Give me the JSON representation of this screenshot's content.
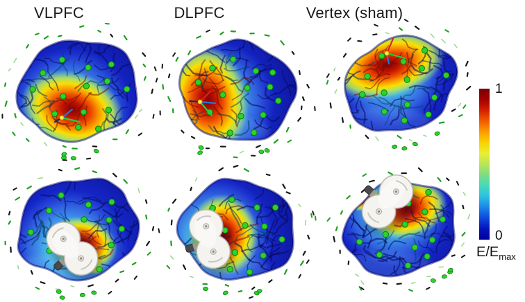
{
  "figure": {
    "background": "#ffffff",
    "columns": [
      {
        "label": "VLPFC"
      },
      {
        "label": "DLPFC"
      },
      {
        "label": "Vertex (sham)"
      }
    ],
    "colorbar": {
      "max_label": "1",
      "min_label": "0",
      "quantity": "E/E",
      "quantity_sub": "max",
      "gradient": [
        "#7a0003",
        "#a30000",
        "#d32000",
        "#f25c00",
        "#fb9b00",
        "#f8d300",
        "#e8ef30",
        "#b9e55a",
        "#7edc84",
        "#45d9bb",
        "#2cc0e2",
        "#1b86e8",
        "#1048dd",
        "#0413bb",
        "#00009b"
      ]
    },
    "palette": {
      "brain_light": "#2946e6",
      "brain_base": "#1526c8",
      "brain_dark": "#0a0f8a",
      "cyan_zone": "#50cdeb",
      "hotspot_core": "#840006",
      "hotspot_mid": "#ee4d00",
      "hotspot_yellow": "#f9df00",
      "electrode_dot": "#2bd32b",
      "electrode_dot_edge": "#0d7a0d",
      "ring_dash_black": "#161616",
      "ring_dash_green": "#1e9e1e",
      "ring_dash_lightgreen": "#86cf7a",
      "coil_body": "#f4f3ef",
      "coil_edge": "#b9b7b0",
      "marker_red": "#dd2222",
      "marker_green": "#22cc44",
      "marker_blue": "#2277dd",
      "marker_yellow": "#ffe84a"
    }
  }
}
